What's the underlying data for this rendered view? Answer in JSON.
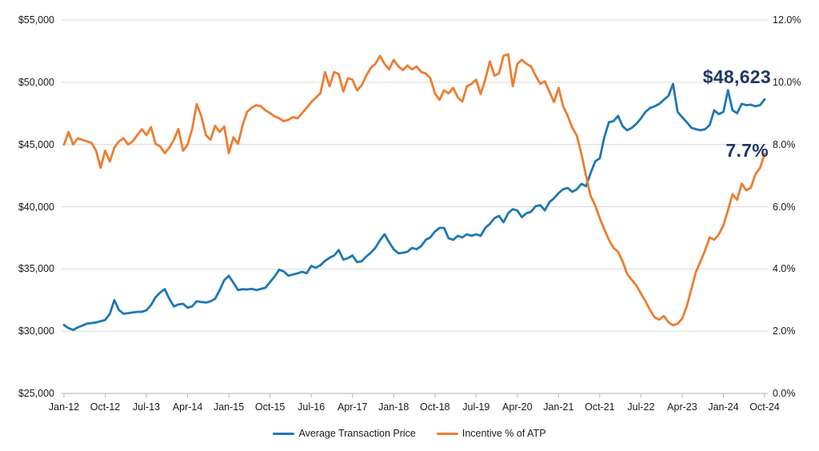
{
  "chart_data": {
    "type": "line",
    "title": "",
    "grid": true,
    "legend_position": "bottom",
    "x_axis": {
      "start": "Jan-12",
      "end": "Oct-24",
      "frequency": "monthly",
      "tick_labels": [
        "Jan-12",
        "Oct-12",
        "Jul-13",
        "Apr-14",
        "Jan-15",
        "Oct-15",
        "Jul-16",
        "Apr-17",
        "Jan-18",
        "Oct-18",
        "Jul-19",
        "Apr-20",
        "Jan-21",
        "Oct-21",
        "Jul-22",
        "Apr-23",
        "Jan-24",
        "Oct-24"
      ],
      "tick_interval_months": 9
    },
    "y_axis_left": {
      "min": 25000,
      "max": 55000,
      "step": 5000,
      "tick_labels": [
        "$55,000",
        "$50,000",
        "$45,000",
        "$40,000",
        "$35,000",
        "$30,000",
        "$25,000"
      ]
    },
    "y_axis_right": {
      "min": 0,
      "max": 12,
      "step": 2,
      "tick_labels": [
        "12.0%",
        "10.0%",
        "8.0%",
        "6.0%",
        "4.0%",
        "2.0%",
        "0.0%"
      ]
    },
    "series": [
      {
        "name": "Average Transaction Price",
        "axis": "left",
        "color": "#1F77B4",
        "values": [
          30500,
          30250,
          30100,
          30300,
          30450,
          30600,
          30650,
          30700,
          30800,
          30900,
          31400,
          32500,
          31700,
          31400,
          31450,
          31500,
          31550,
          31550,
          31680,
          32100,
          32730,
          33100,
          33375,
          32600,
          31990,
          32150,
          32200,
          31880,
          32000,
          32410,
          32350,
          32300,
          32400,
          32600,
          33300,
          34100,
          34450,
          33900,
          33300,
          33375,
          33350,
          33400,
          33300,
          33400,
          33485,
          33940,
          34400,
          34935,
          34800,
          34450,
          34550,
          34650,
          34770,
          34660,
          35240,
          35100,
          35300,
          35645,
          35900,
          36080,
          36520,
          35745,
          35870,
          36080,
          35550,
          35620,
          36000,
          36300,
          36700,
          37300,
          37790,
          37150,
          36580,
          36260,
          36300,
          36380,
          36700,
          36580,
          36830,
          37340,
          37530,
          38000,
          38300,
          38300,
          37470,
          37340,
          37660,
          37530,
          37790,
          37660,
          37790,
          37660,
          38300,
          38625,
          39075,
          39270,
          38750,
          39480,
          39800,
          39700,
          39160,
          39480,
          39590,
          40040,
          40125,
          39700,
          40360,
          40680,
          41090,
          41410,
          41510,
          41195,
          41410,
          41840,
          41645,
          42695,
          43650,
          43890,
          45585,
          46790,
          46875,
          47300,
          46470,
          46140,
          46340,
          46660,
          47100,
          47620,
          47940,
          48070,
          48260,
          48590,
          48910,
          49870,
          47620,
          47190,
          46790,
          46340,
          46230,
          46140,
          46230,
          46550,
          47750,
          47430,
          47620,
          49360,
          47750,
          47510,
          48270,
          48160,
          48200,
          48070,
          48160,
          48623
        ]
      },
      {
        "name": "Incentive % of ATP",
        "axis": "right",
        "color": "#ED7D31",
        "values": [
          8.0,
          8.4,
          8.0,
          8.2,
          8.15,
          8.1,
          8.05,
          7.8,
          7.25,
          7.8,
          7.45,
          7.9,
          8.1,
          8.2,
          8.0,
          8.1,
          8.3,
          8.49,
          8.3,
          8.56,
          8.02,
          7.94,
          7.72,
          7.9,
          8.15,
          8.5,
          7.8,
          8.0,
          8.5,
          9.3,
          8.9,
          8.3,
          8.15,
          8.6,
          8.4,
          8.58,
          7.72,
          8.23,
          8.02,
          8.62,
          9.05,
          9.18,
          9.26,
          9.23,
          9.1,
          9.01,
          8.9,
          8.84,
          8.75,
          8.79,
          8.88,
          8.84,
          9.01,
          9.18,
          9.36,
          9.5,
          9.65,
          10.33,
          9.87,
          10.33,
          10.26,
          9.7,
          10.13,
          10.08,
          9.74,
          9.9,
          10.21,
          10.46,
          10.59,
          10.85,
          10.59,
          10.41,
          10.72,
          10.51,
          10.39,
          10.54,
          10.41,
          10.51,
          10.33,
          10.28,
          10.13,
          9.64,
          9.43,
          9.74,
          9.64,
          9.82,
          9.51,
          9.38,
          9.87,
          9.95,
          10.08,
          9.62,
          10.08,
          10.67,
          10.21,
          10.28,
          10.85,
          10.9,
          9.87,
          10.59,
          10.72,
          10.59,
          10.51,
          10.21,
          9.95,
          10.03,
          9.7,
          9.36,
          9.82,
          9.23,
          8.92,
          8.54,
          8.28,
          7.69,
          7.0,
          6.35,
          6.04,
          5.63,
          5.27,
          4.94,
          4.68,
          4.55,
          4.24,
          3.83,
          3.65,
          3.47,
          3.21,
          2.96,
          2.67,
          2.44,
          2.37,
          2.49,
          2.29,
          2.19,
          2.24,
          2.4,
          2.8,
          3.35,
          3.9,
          4.24,
          4.6,
          5.01,
          4.94,
          5.11,
          5.4,
          5.89,
          6.4,
          6.22,
          6.74,
          6.53,
          6.61,
          7.04,
          7.25,
          7.7
        ]
      }
    ],
    "annotations": [
      {
        "text": "$48,623",
        "color": "#1F3864",
        "series": "Average Transaction Price"
      },
      {
        "text": "7.7%",
        "color": "#1F3864",
        "series": "Incentive % of ATP"
      }
    ],
    "colors": {
      "gridline": "#D9D9D9",
      "axis_line": "#BFBFBF",
      "axis_text": "#1A1A1A",
      "annotation": "#1F3864"
    }
  }
}
